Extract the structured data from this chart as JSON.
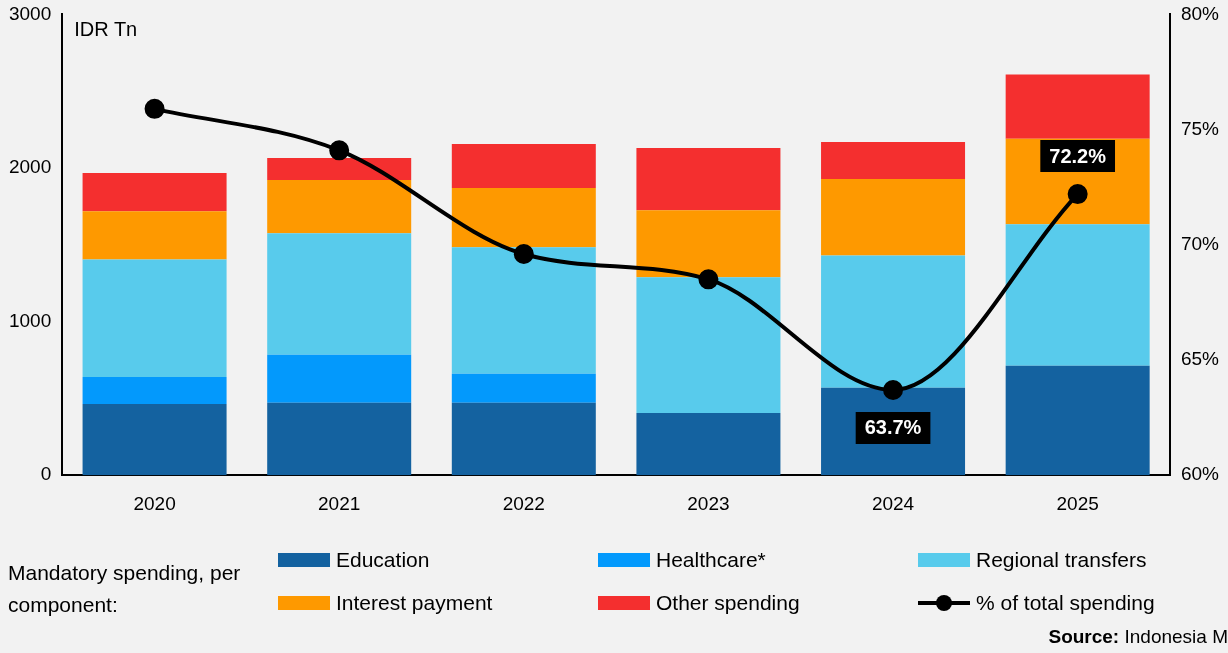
{
  "chart_data": {
    "type": "bar",
    "stacked": true,
    "ylabel": "IDR Tn",
    "legend_title": "Mandatory spending, per component:",
    "legend": "bottom",
    "marker": "circle",
    "line_style": "solid",
    "categories": [
      "2020",
      "2021",
      "2022",
      "2023",
      "2024",
      "2025"
    ],
    "ylim": [
      0,
      3000
    ],
    "yticks": [
      0,
      1000,
      2000,
      3000
    ],
    "y2lim": [
      60,
      80
    ],
    "y2ticks": [
      {
        "value": 60,
        "label": "60%"
      },
      {
        "value": 65,
        "label": "65%"
      },
      {
        "value": 70,
        "label": "70%"
      },
      {
        "value": 75,
        "label": "75%"
      },
      {
        "value": 80,
        "label": "80%"
      }
    ],
    "series": [
      {
        "name": "Education",
        "color": "#1462a0",
        "values": [
          464,
          471,
          471,
          405,
          569,
          712
        ]
      },
      {
        "name": "Healthcare*",
        "color": "#0399fc",
        "values": [
          176,
          313,
          189,
          null,
          null,
          null
        ]
      },
      {
        "name": "Regional transfers",
        "color": "#58cbec",
        "values": [
          765,
          791,
          824,
          883,
          862,
          922
        ]
      },
      {
        "name": "Interest payment",
        "color": "#fe9900",
        "values": [
          314,
          347,
          385,
          437,
          497,
          556
        ]
      },
      {
        "name": "Other spending",
        "color": "#f42f2f",
        "values": [
          248,
          143,
          288,
          406,
          242,
          418
        ]
      },
      {
        "name": "% of total spending",
        "type": "line",
        "axis": "y2",
        "color": "#000000",
        "values": [
          75.9,
          74.1,
          69.6,
          68.5,
          63.7,
          72.2
        ],
        "value_labels": [
          null,
          null,
          null,
          null,
          "63.7%",
          "72.2%"
        ]
      }
    ],
    "annotations": [
      "Source: Indonesia M"
    ]
  }
}
